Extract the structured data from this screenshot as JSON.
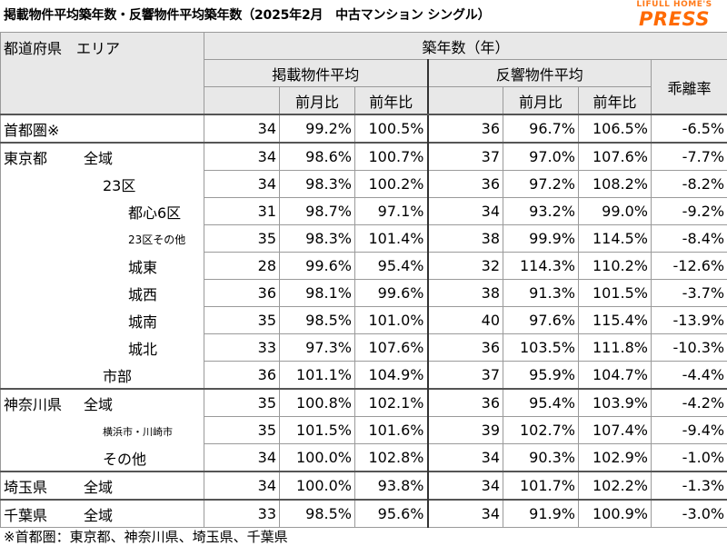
{
  "title": "掲載物件平均築年数・反響物件平均築年数（2025年2月　中古マンション シングル）",
  "logo": {
    "top": "LIFULL HOME'S",
    "main": "PRESS"
  },
  "headers": {
    "region": "都道府県　エリア",
    "age": "築年数（年）",
    "listed": "掲載物件平均",
    "response": "反響物件平均",
    "divergence": "乖離率",
    "mom": "前月比",
    "yoy": "前年比"
  },
  "rows": [
    {
      "pref": "首都圏※",
      "area": "",
      "l_age": "34",
      "l_mom": "99.2%",
      "l_yoy": "100.5%",
      "r_age": "36",
      "r_mom": "96.7%",
      "r_yoy": "106.5%",
      "div": "-6.5%"
    },
    {
      "pref": "東京都",
      "area": "全域",
      "l_age": "34",
      "l_mom": "98.6%",
      "l_yoy": "100.7%",
      "r_age": "37",
      "r_mom": "97.0%",
      "r_yoy": "107.6%",
      "div": "-7.7%"
    },
    {
      "pref": "",
      "area": "23区",
      "l_age": "34",
      "l_mom": "98.3%",
      "l_yoy": "100.2%",
      "r_age": "36",
      "r_mom": "97.2%",
      "r_yoy": "108.2%",
      "div": "-8.2%"
    },
    {
      "pref": "",
      "area": "都心6区",
      "l_age": "31",
      "l_mom": "98.7%",
      "l_yoy": "97.1%",
      "r_age": "34",
      "r_mom": "93.2%",
      "r_yoy": "99.0%",
      "div": "-9.2%"
    },
    {
      "pref": "",
      "area": "23区その他",
      "l_age": "35",
      "l_mom": "98.3%",
      "l_yoy": "101.4%",
      "r_age": "38",
      "r_mom": "99.9%",
      "r_yoy": "114.5%",
      "div": "-8.4%"
    },
    {
      "pref": "",
      "area": "城東",
      "l_age": "28",
      "l_mom": "99.6%",
      "l_yoy": "95.4%",
      "r_age": "32",
      "r_mom": "114.3%",
      "r_yoy": "110.2%",
      "div": "-12.6%"
    },
    {
      "pref": "",
      "area": "城西",
      "l_age": "36",
      "l_mom": "98.1%",
      "l_yoy": "99.6%",
      "r_age": "38",
      "r_mom": "91.3%",
      "r_yoy": "101.5%",
      "div": "-3.7%"
    },
    {
      "pref": "",
      "area": "城南",
      "l_age": "35",
      "l_mom": "98.5%",
      "l_yoy": "101.0%",
      "r_age": "40",
      "r_mom": "97.6%",
      "r_yoy": "115.4%",
      "div": "-13.9%"
    },
    {
      "pref": "",
      "area": "城北",
      "l_age": "33",
      "l_mom": "97.3%",
      "l_yoy": "107.6%",
      "r_age": "36",
      "r_mom": "103.5%",
      "r_yoy": "111.8%",
      "div": "-10.3%"
    },
    {
      "pref": "",
      "area": "市部",
      "l_age": "36",
      "l_mom": "101.1%",
      "l_yoy": "104.9%",
      "r_age": "37",
      "r_mom": "95.9%",
      "r_yoy": "104.7%",
      "div": "-4.4%"
    },
    {
      "pref": "神奈川県",
      "area": "全域",
      "l_age": "35",
      "l_mom": "100.8%",
      "l_yoy": "102.1%",
      "r_age": "36",
      "r_mom": "95.4%",
      "r_yoy": "103.9%",
      "div": "-4.2%"
    },
    {
      "pref": "",
      "area": "横浜市・川崎市",
      "l_age": "35",
      "l_mom": "101.5%",
      "l_yoy": "101.6%",
      "r_age": "39",
      "r_mom": "102.7%",
      "r_yoy": "107.4%",
      "div": "-9.4%"
    },
    {
      "pref": "",
      "area": "その他",
      "l_age": "34",
      "l_mom": "100.0%",
      "l_yoy": "102.8%",
      "r_age": "34",
      "r_mom": "90.3%",
      "r_yoy": "102.9%",
      "div": "-1.0%"
    },
    {
      "pref": "埼玉県",
      "area": "全域",
      "l_age": "34",
      "l_mom": "100.0%",
      "l_yoy": "93.8%",
      "r_age": "34",
      "r_mom": "101.7%",
      "r_yoy": "102.2%",
      "div": "-1.3%"
    },
    {
      "pref": "千葉県",
      "area": "全域",
      "l_age": "33",
      "l_mom": "98.5%",
      "l_yoy": "95.6%",
      "r_age": "34",
      "r_mom": "91.9%",
      "r_yoy": "100.9%",
      "div": "-3.0%"
    }
  ],
  "footnote": "※首都圏：東京都、神奈川県、埼玉県、千葉県"
}
